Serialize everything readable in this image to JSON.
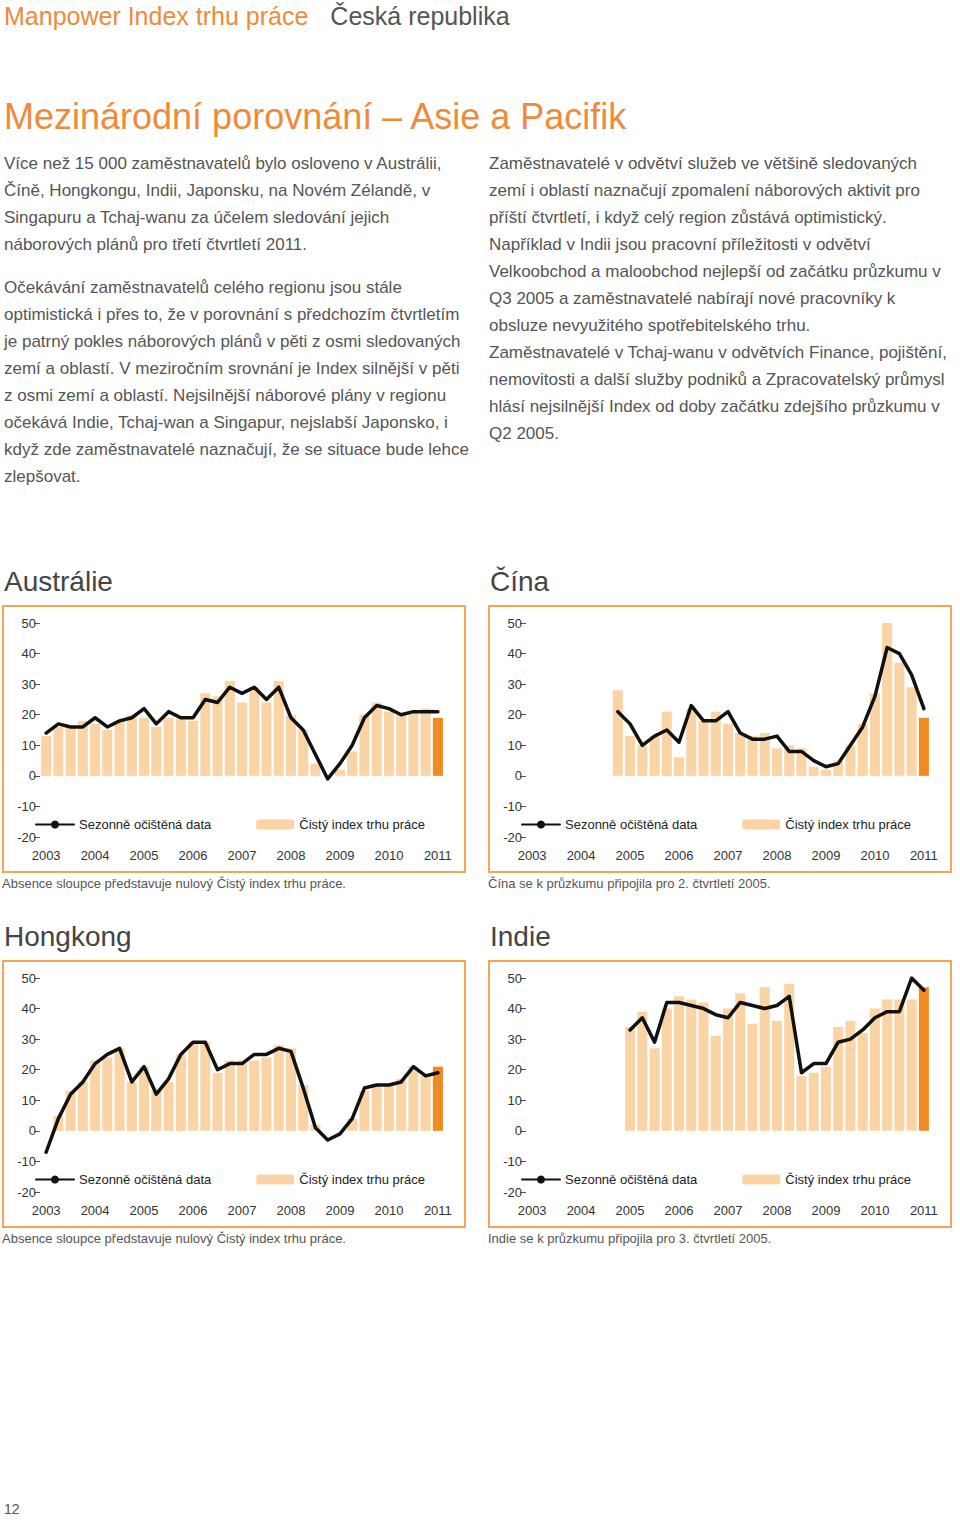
{
  "header": {
    "left": "Manpower Index trhu práce",
    "right": "Česká republika"
  },
  "title": "Mezinárodní porovnání – Asie a Pacifik",
  "columns": [
    [
      "Více než 15 000 zaměstnavatelů bylo osloveno v Austrálii, Číně, Hongkongu, Indii, Japonsku, na Novém Zélandě, v Singapuru a Tchaj-wanu za účelem sledování jejich náborových plánů pro třetí čtvrtletí 2011.",
      "Očekávání zaměstnavatelů celého regionu jsou stále optimistická i přes to, že v porovnání s předchozím čtvrtletím je patrný pokles náborových plánů v pěti z osmi sledovaných zemí a oblastí. V meziročním srovnání je Index silnější v pěti z osmi zemí a oblastí. Nejsilnější náborové plány v regionu očekává Indie, Tchaj-wan a Singapur, nejslabší Japonsko, i když zde zaměstnavatelé naznačují, že se situace bude lehce zlepšovat."
    ],
    [
      "Zaměstnavatelé v odvětví služeb ve většině sledovaných zemí i oblastí naznačují zpomalení náborových aktivit pro příští čtvrtletí, i když celý region zůstává optimistický.",
      "Například v Indii jsou pracovní příležitosti v odvětví Velkoobchod a maloobchod nejlepší od začátku průzkumu v Q3 2005 a zaměstnavatelé nabírají nové pracovníky k obsluze nevyužitého spotřebitelského trhu.",
      "Zaměstnavatelé v Tchaj-wanu v odvětvích Finance, pojištění, nemovitosti a další služby podniků a Zpracovatelský průmysl hlásí nejsilnější Index od doby začátku zdejšího průzkumu v Q2 2005."
    ]
  ],
  "chart_data": [
    {
      "type": "bar",
      "title": "Austrálie",
      "note": "Absence sloupce představuje nulový Čistý index trhu práce.",
      "categories": [
        "2003",
        null,
        null,
        null,
        "2004",
        null,
        null,
        null,
        "2005",
        null,
        null,
        null,
        "2006",
        null,
        null,
        null,
        "2007",
        null,
        null,
        null,
        "2008",
        null,
        null,
        null,
        "2009",
        null,
        null,
        null,
        "2010",
        null,
        null,
        null,
        "2011"
      ],
      "ylim": [
        -20,
        50
      ],
      "yticks": [
        -20,
        -10,
        0,
        10,
        20,
        30,
        40,
        50
      ],
      "grid": false,
      "legend": "bottom",
      "series": [
        {
          "name": "Sezonně očištěná data",
          "type": "line",
          "color": "#111111",
          "line_style": "solid",
          "values": [
            14,
            17,
            16,
            16,
            19,
            16,
            18,
            19,
            22,
            17,
            21,
            19,
            19,
            25,
            24,
            29,
            27,
            29,
            25,
            29,
            19,
            15,
            7,
            -1,
            4,
            10,
            19,
            23,
            22,
            20,
            21,
            21,
            21
          ]
        },
        {
          "name": "Čistý index trhu práce",
          "type": "bar",
          "colors": [
            "#fbd4a6",
            "#fbd4a6",
            "#fbd4a6",
            "#fbd4a6",
            "#fbd4a6",
            "#fbd4a6",
            "#fbd4a6",
            "#fbd4a6",
            "#fbd4a6",
            "#fbd4a6",
            "#fbd4a6",
            "#fbd4a6",
            "#fbd4a6",
            "#fbd4a6",
            "#fbd4a6",
            "#fbd4a6",
            "#fbd4a6",
            "#fbd4a6",
            "#fbd4a6",
            "#fbd4a6",
            "#fbd4a6",
            "#fbd4a6",
            "#fbd4a6",
            "#fbd4a6",
            "#fbd4a6",
            "#fbd4a6",
            "#fbd4a6",
            "#fbd4a6",
            "#fbd4a6",
            "#fbd4a6",
            "#fbd4a6",
            "#fbd4a6",
            "#f08a24"
          ],
          "values": [
            13,
            16,
            16,
            18,
            17,
            15,
            18,
            20,
            19,
            16,
            19,
            19,
            18,
            27,
            26,
            31,
            24,
            29,
            24,
            31,
            20,
            15,
            4,
            0,
            2,
            8,
            20,
            24,
            21,
            20,
            21,
            22,
            19
          ]
        }
      ]
    },
    {
      "type": "bar",
      "title": "Čína",
      "note": "Čína se k průzkumu připojila pro 2. čtvrtletí 2005.",
      "categories": [
        "2003",
        null,
        null,
        null,
        "2004",
        null,
        null,
        null,
        "2005",
        null,
        null,
        null,
        "2006",
        null,
        null,
        null,
        "2007",
        null,
        null,
        null,
        "2008",
        null,
        null,
        null,
        "2009",
        null,
        null,
        null,
        "2010",
        null,
        null,
        null,
        "2011"
      ],
      "ylim": [
        -20,
        50
      ],
      "yticks": [
        -20,
        -10,
        0,
        10,
        20,
        30,
        40,
        50
      ],
      "grid": false,
      "legend": "bottom",
      "series": [
        {
          "name": "Sezonně očištěná data",
          "type": "line",
          "color": "#111111",
          "line_style": "solid",
          "values": [
            null,
            null,
            null,
            null,
            null,
            null,
            null,
            21,
            17,
            10,
            13,
            15,
            11,
            23,
            18,
            18,
            21,
            14,
            12,
            12,
            13,
            8,
            8,
            5,
            3,
            4,
            10,
            16,
            26,
            42,
            40,
            33,
            22
          ]
        },
        {
          "name": "Čistý index trhu práce",
          "type": "bar",
          "colors": [
            "#fbd4a6",
            "#fbd4a6",
            "#fbd4a6",
            "#fbd4a6",
            "#fbd4a6",
            "#fbd4a6",
            "#fbd4a6",
            "#fbd4a6",
            "#fbd4a6",
            "#fbd4a6",
            "#fbd4a6",
            "#fbd4a6",
            "#fbd4a6",
            "#fbd4a6",
            "#fbd4a6",
            "#fbd4a6",
            "#fbd4a6",
            "#fbd4a6",
            "#fbd4a6",
            "#fbd4a6",
            "#fbd4a6",
            "#fbd4a6",
            "#fbd4a6",
            "#fbd4a6",
            "#fbd4a6",
            "#fbd4a6",
            "#fbd4a6",
            "#fbd4a6",
            "#fbd4a6",
            "#fbd4a6",
            "#fbd4a6",
            "#fbd4a6",
            "#f08a24"
          ],
          "values": [
            null,
            null,
            null,
            null,
            null,
            null,
            null,
            28,
            13,
            10,
            13,
            21,
            6,
            22,
            18,
            21,
            17,
            14,
            13,
            14,
            9,
            10,
            9,
            3,
            2,
            5,
            10,
            17,
            27,
            50,
            37,
            29,
            19
          ]
        }
      ]
    },
    {
      "type": "bar",
      "title": "Hongkong",
      "note": "Absence sloupce představuje nulový Čistý index trhu práce.",
      "categories": [
        "2003",
        null,
        null,
        null,
        "2004",
        null,
        null,
        null,
        "2005",
        null,
        null,
        null,
        "2006",
        null,
        null,
        null,
        "2007",
        null,
        null,
        null,
        "2008",
        null,
        null,
        null,
        "2009",
        null,
        null,
        null,
        "2010",
        null,
        null,
        null,
        "2011"
      ],
      "ylim": [
        -20,
        50
      ],
      "yticks": [
        -20,
        -10,
        0,
        10,
        20,
        30,
        40,
        50
      ],
      "grid": false,
      "legend": "bottom",
      "series": [
        {
          "name": "Sezonně očištěná data",
          "type": "line",
          "color": "#111111",
          "line_style": "solid",
          "values": [
            -7,
            4,
            12,
            16,
            22,
            25,
            27,
            16,
            21,
            12,
            17,
            25,
            29,
            29,
            20,
            22,
            22,
            25,
            25,
            27,
            26,
            14,
            1,
            -3,
            -1,
            4,
            14,
            15,
            15,
            16,
            21,
            18,
            19
          ]
        },
        {
          "name": "Čistý index trhu práce",
          "type": "bar",
          "colors": [
            "#fbd4a6",
            "#fbd4a6",
            "#fbd4a6",
            "#fbd4a6",
            "#fbd4a6",
            "#fbd4a6",
            "#fbd4a6",
            "#fbd4a6",
            "#fbd4a6",
            "#fbd4a6",
            "#fbd4a6",
            "#fbd4a6",
            "#fbd4a6",
            "#fbd4a6",
            "#fbd4a6",
            "#fbd4a6",
            "#fbd4a6",
            "#fbd4a6",
            "#fbd4a6",
            "#fbd4a6",
            "#fbd4a6",
            "#fbd4a6",
            "#fbd4a6",
            "#fbd4a6",
            "#fbd4a6",
            "#fbd4a6",
            "#fbd4a6",
            "#fbd4a6",
            "#fbd4a6",
            "#fbd4a6",
            "#fbd4a6",
            "#fbd4a6",
            "#f08a24"
          ],
          "values": [
            0,
            5,
            13,
            16,
            23,
            24,
            27,
            16,
            21,
            13,
            16,
            25,
            29,
            29,
            19,
            23,
            23,
            23,
            24,
            28,
            27,
            15,
            2,
            0,
            0,
            4,
            13,
            15,
            15,
            17,
            21,
            18,
            21
          ]
        }
      ]
    },
    {
      "type": "bar",
      "title": "Indie",
      "note": "Indie se k průzkumu připojila pro 3. čtvrtletí 2005.",
      "categories": [
        "2003",
        null,
        null,
        null,
        "2004",
        null,
        null,
        null,
        "2005",
        null,
        null,
        null,
        "2006",
        null,
        null,
        null,
        "2007",
        null,
        null,
        null,
        "2008",
        null,
        null,
        null,
        "2009",
        null,
        null,
        null,
        "2010",
        null,
        null,
        null,
        "2011"
      ],
      "ylim": [
        -20,
        50
      ],
      "yticks": [
        -20,
        -10,
        0,
        10,
        20,
        30,
        40,
        50
      ],
      "grid": false,
      "legend": "bottom",
      "series": [
        {
          "name": "Sezonně očištěná data",
          "type": "line",
          "color": "#111111",
          "line_style": "solid",
          "values": [
            null,
            null,
            null,
            null,
            null,
            null,
            null,
            null,
            33,
            37,
            29,
            42,
            42,
            41,
            40,
            38,
            37,
            42,
            41,
            40,
            41,
            44,
            19,
            22,
            22,
            29,
            30,
            33,
            37,
            39,
            39,
            50,
            46
          ]
        },
        {
          "name": "Čistý index trhu práce",
          "type": "bar",
          "colors": [
            "#fbd4a6",
            "#fbd4a6",
            "#fbd4a6",
            "#fbd4a6",
            "#fbd4a6",
            "#fbd4a6",
            "#fbd4a6",
            "#fbd4a6",
            "#fbd4a6",
            "#fbd4a6",
            "#fbd4a6",
            "#fbd4a6",
            "#fbd4a6",
            "#fbd4a6",
            "#fbd4a6",
            "#fbd4a6",
            "#fbd4a6",
            "#fbd4a6",
            "#fbd4a6",
            "#fbd4a6",
            "#fbd4a6",
            "#fbd4a6",
            "#fbd4a6",
            "#fbd4a6",
            "#fbd4a6",
            "#fbd4a6",
            "#fbd4a6",
            "#fbd4a6",
            "#fbd4a6",
            "#fbd4a6",
            "#fbd4a6",
            "#fbd4a6",
            "#f08a24"
          ],
          "values": [
            null,
            null,
            null,
            null,
            null,
            null,
            null,
            null,
            34,
            39,
            27,
            40,
            44,
            43,
            42,
            31,
            40,
            45,
            35,
            47,
            36,
            48,
            18,
            19,
            21,
            34,
            36,
            32,
            40,
            43,
            43,
            43,
            47
          ]
        }
      ]
    }
  ],
  "page_number": 12
}
